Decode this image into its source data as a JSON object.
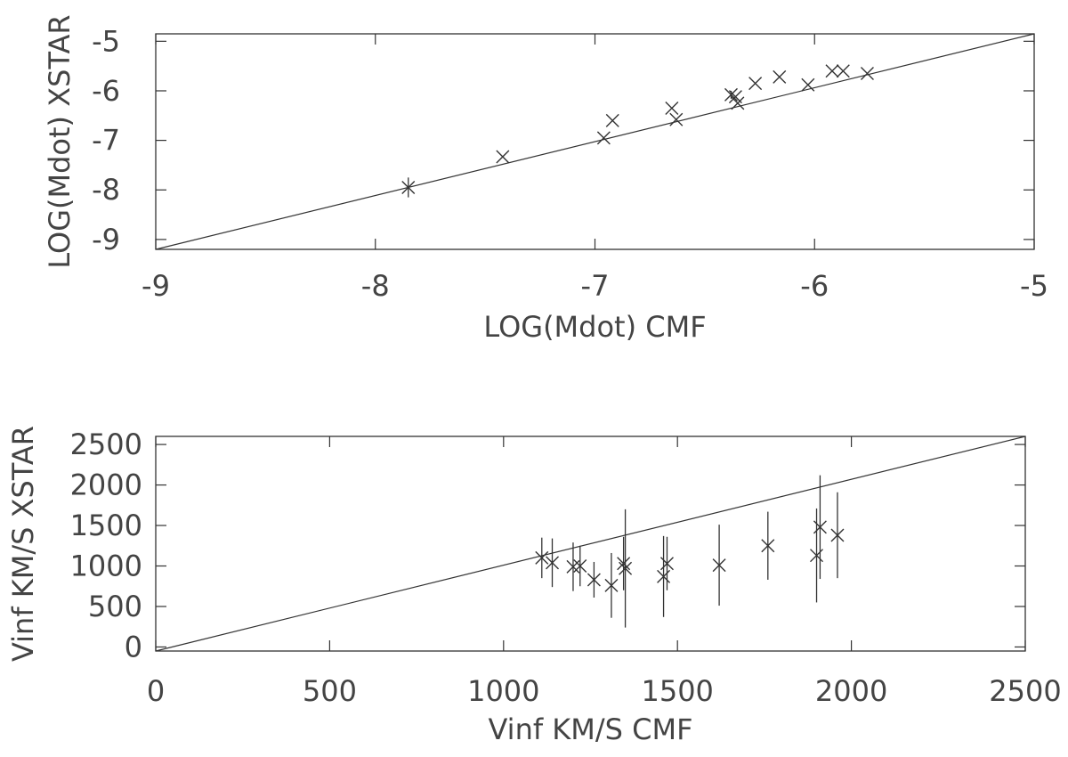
{
  "chart_data": [
    {
      "type": "scatter",
      "title": "",
      "xlabel": "LOG(Mdot) CMF",
      "ylabel": "LOG(Mdot) XSTAR",
      "xlim": [
        -9,
        -5
      ],
      "ylim": [
        -9.2,
        -4.85
      ],
      "x_ticks": [
        "-9",
        "-8",
        "-7",
        "-6",
        "-5"
      ],
      "y_ticks": [
        "-9",
        "-8",
        "-7",
        "-6",
        "-5"
      ],
      "x_tick_values": [
        -9,
        -8,
        -7,
        -6,
        -5
      ],
      "y_tick_values": [
        -9,
        -8,
        -7,
        -6,
        -5
      ],
      "grid": false,
      "reference_line": [
        [
          -9,
          -9.2
        ],
        [
          -5,
          -4.85
        ]
      ],
      "points": [
        {
          "x": -7.85,
          "y": -7.95,
          "y_err": 0.2
        },
        {
          "x": -7.42,
          "y": -7.33,
          "y_err": 0
        },
        {
          "x": -6.96,
          "y": -6.95,
          "y_err": 0
        },
        {
          "x": -6.92,
          "y": -6.6,
          "y_err": 0
        },
        {
          "x": -6.65,
          "y": -6.35,
          "y_err": 0
        },
        {
          "x": -6.63,
          "y": -6.58,
          "y_err": 0
        },
        {
          "x": -6.38,
          "y": -6.08,
          "y_err": 0.08
        },
        {
          "x": -6.36,
          "y": -6.12,
          "y_err": 0
        },
        {
          "x": -6.35,
          "y": -6.25,
          "y_err": 0
        },
        {
          "x": -6.27,
          "y": -5.85,
          "y_err": 0
        },
        {
          "x": -6.16,
          "y": -5.72,
          "y_err": 0
        },
        {
          "x": -6.03,
          "y": -5.88,
          "y_err": 0
        },
        {
          "x": -5.92,
          "y": -5.6,
          "y_err": 0
        },
        {
          "x": -5.87,
          "y": -5.6,
          "y_err": 0
        },
        {
          "x": -5.76,
          "y": -5.65,
          "y_err": 0
        }
      ]
    },
    {
      "type": "scatter",
      "title": "",
      "xlabel": "Vinf KM/S CMF",
      "ylabel": "Vinf KM/S XSTAR",
      "xlim": [
        0,
        2500
      ],
      "ylim": [
        -50,
        2600
      ],
      "x_ticks": [
        "0",
        "500",
        "1000",
        "1500",
        "2000",
        "2500"
      ],
      "y_ticks": [
        "0",
        "500",
        "1000",
        "1500",
        "2000",
        "2500"
      ],
      "x_tick_values": [
        0,
        500,
        1000,
        1500,
        2000,
        2500
      ],
      "y_tick_values": [
        0,
        500,
        1000,
        1500,
        2000,
        2500
      ],
      "grid": false,
      "reference_line": [
        [
          0,
          -50
        ],
        [
          2500,
          2600
        ]
      ],
      "points": [
        {
          "x": 1110,
          "y": 1100,
          "y_err": 250
        },
        {
          "x": 1140,
          "y": 1040,
          "y_err": 300
        },
        {
          "x": 1200,
          "y": 990,
          "y_err": 300
        },
        {
          "x": 1220,
          "y": 1000,
          "y_err": 250
        },
        {
          "x": 1260,
          "y": 830,
          "y_err": 220
        },
        {
          "x": 1310,
          "y": 760,
          "y_err": 400
        },
        {
          "x": 1345,
          "y": 1030,
          "y_err": 330
        },
        {
          "x": 1350,
          "y": 970,
          "y_err": 730
        },
        {
          "x": 1460,
          "y": 870,
          "y_err": 500
        },
        {
          "x": 1470,
          "y": 1030,
          "y_err": 330
        },
        {
          "x": 1620,
          "y": 1010,
          "y_err": 500
        },
        {
          "x": 1760,
          "y": 1250,
          "y_err": 420
        },
        {
          "x": 1900,
          "y": 1130,
          "y_err": 580
        },
        {
          "x": 1910,
          "y": 1480,
          "y_err": 640
        },
        {
          "x": 1960,
          "y": 1380,
          "y_err": 530
        }
      ]
    }
  ]
}
